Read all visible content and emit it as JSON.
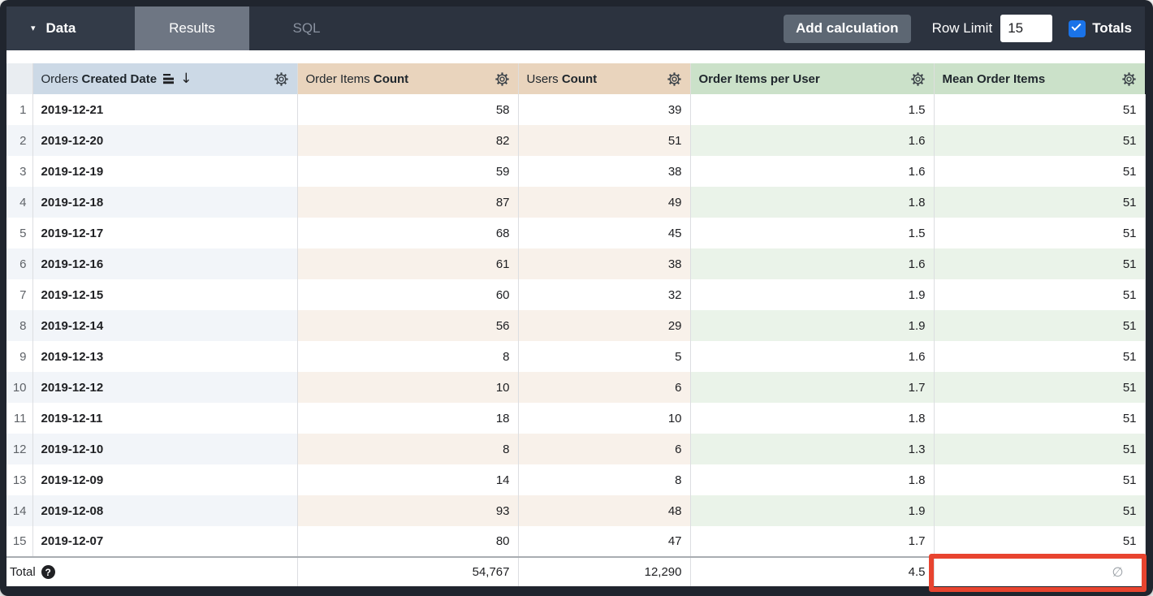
{
  "topbar": {
    "data_label": "Data",
    "results_tab": "Results",
    "sql_tab": "SQL",
    "add_calculation_label": "Add calculation",
    "row_limit_label": "Row Limit",
    "row_limit_value": "15",
    "totals_label": "Totals",
    "totals_checked": true
  },
  "table": {
    "columns": [
      {
        "regular": "Orders",
        "bold": "Created Date",
        "sorted": "descending"
      },
      {
        "regular": "Order Items",
        "bold": "Count"
      },
      {
        "regular": "Users",
        "bold": "Count"
      },
      {
        "regular": "",
        "bold": "Order Items per User"
      },
      {
        "regular": "",
        "bold": "Mean Order Items"
      }
    ],
    "rows": [
      [
        "1",
        "2019-12-21",
        "58",
        "39",
        "1.5",
        "51"
      ],
      [
        "2",
        "2019-12-20",
        "82",
        "51",
        "1.6",
        "51"
      ],
      [
        "3",
        "2019-12-19",
        "59",
        "38",
        "1.6",
        "51"
      ],
      [
        "4",
        "2019-12-18",
        "87",
        "49",
        "1.8",
        "51"
      ],
      [
        "5",
        "2019-12-17",
        "68",
        "45",
        "1.5",
        "51"
      ],
      [
        "6",
        "2019-12-16",
        "61",
        "38",
        "1.6",
        "51"
      ],
      [
        "7",
        "2019-12-15",
        "60",
        "32",
        "1.9",
        "51"
      ],
      [
        "8",
        "2019-12-14",
        "56",
        "29",
        "1.9",
        "51"
      ],
      [
        "9",
        "2019-12-13",
        "8",
        "5",
        "1.6",
        "51"
      ],
      [
        "10",
        "2019-12-12",
        "10",
        "6",
        "1.7",
        "51"
      ],
      [
        "11",
        "2019-12-11",
        "18",
        "10",
        "1.8",
        "51"
      ],
      [
        "12",
        "2019-12-10",
        "8",
        "6",
        "1.3",
        "51"
      ],
      [
        "13",
        "2019-12-09",
        "14",
        "8",
        "1.8",
        "51"
      ],
      [
        "14",
        "2019-12-08",
        "93",
        "48",
        "1.9",
        "51"
      ],
      [
        "15",
        "2019-12-07",
        "80",
        "47",
        "1.7",
        "51"
      ]
    ],
    "total": {
      "label": "Total",
      "order_items_count": "54,767",
      "users_count": "12,290",
      "order_items_per_user": "4.5",
      "mean_order_items": "∅"
    }
  },
  "annotation": {
    "highlight_color": "#e8442f",
    "highlighted_cell": "total mean order items"
  },
  "colors": {
    "topbar_bg": "#2c333f",
    "results_tab_bg": "#6e7683",
    "dimension_header_bg": "#ccd9e6",
    "measure_header_bg": "#e9d4bd",
    "calc_header_bg": "#cbe1c9",
    "checkbox_blue": "#1a73e8"
  }
}
